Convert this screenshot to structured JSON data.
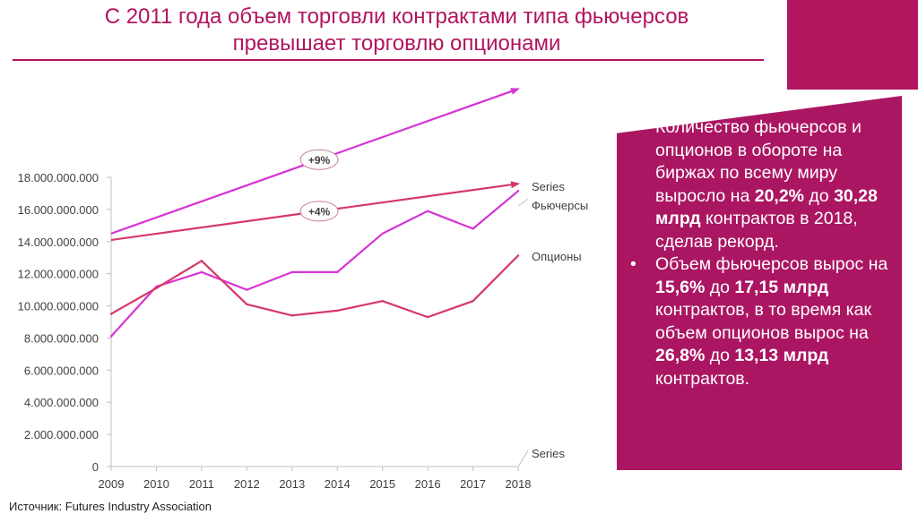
{
  "title": {
    "line1": "С 2011 года объем торговли контрактами типа фьючерсов",
    "line2": "превышает торговлю опционами"
  },
  "panel": {
    "bullet1": {
      "t1": "Количество фьючерсов и опционов в обороте на биржах по всему миру выросло на ",
      "b1": "20,2%",
      "t2": " до ",
      "b2": "30,28 млрд",
      "t3": " контрактов в 2018, сделав рекорд."
    },
    "bullet2": {
      "t1": "Объем фьючерсов вырос на ",
      "b1": "15,6%",
      "t2": " до ",
      "b2": "17,15 млрд",
      "t3": " контрактов, в то время как объем опционов вырос на ",
      "b3": "26,8%",
      "t4": " до ",
      "b4": "13,13 млрд",
      "t5": " контрактов."
    }
  },
  "source": "Источник: Futures Industry Association",
  "colors": {
    "accent": "#b0155e",
    "futures": "#d633d4",
    "options": "#d63865",
    "panel": "#ab1663"
  },
  "chart_data": {
    "type": "line",
    "categories": [
      "2009",
      "2010",
      "2011",
      "2012",
      "2013",
      "2014",
      "2015",
      "2016",
      "2017",
      "2018"
    ],
    "ylim": [
      0,
      18000000000
    ],
    "yticks": [
      0,
      2000000000,
      4000000000,
      6000000000,
      8000000000,
      10000000000,
      12000000000,
      14000000000,
      16000000000,
      18000000000
    ],
    "ytick_labels": [
      "0",
      "2.000.000.000",
      "4.000.000.000",
      "6.000.000.000",
      "8.000.000.000",
      "10.000.000.000",
      "12.000.000.000",
      "14.000.000.000",
      "16.000.000.000",
      "18.000.000.000"
    ],
    "series": [
      {
        "name": "Фьючерсы",
        "color": "#d633d4",
        "values": [
          8100000000,
          11200000000,
          12100000000,
          11000000000,
          12100000000,
          12100000000,
          14500000000,
          15900000000,
          14800000000,
          17150000000
        ]
      },
      {
        "name": "Опционы",
        "color": "#d63865",
        "values": [
          9500000000,
          11100000000,
          12800000000,
          10100000000,
          9400000000,
          9700000000,
          10300000000,
          9300000000,
          10300000000,
          13130000000
        ]
      }
    ],
    "extra_labels": [
      "Series",
      "Series"
    ],
    "trend_arrows": [
      {
        "label": "+9%",
        "color": "#d633d4",
        "from_value": 14500000000,
        "to_value": 23500000000
      },
      {
        "label": "+4%",
        "color": "#d63865",
        "from_value": 14100000000,
        "to_value": 17600000000
      }
    ]
  }
}
